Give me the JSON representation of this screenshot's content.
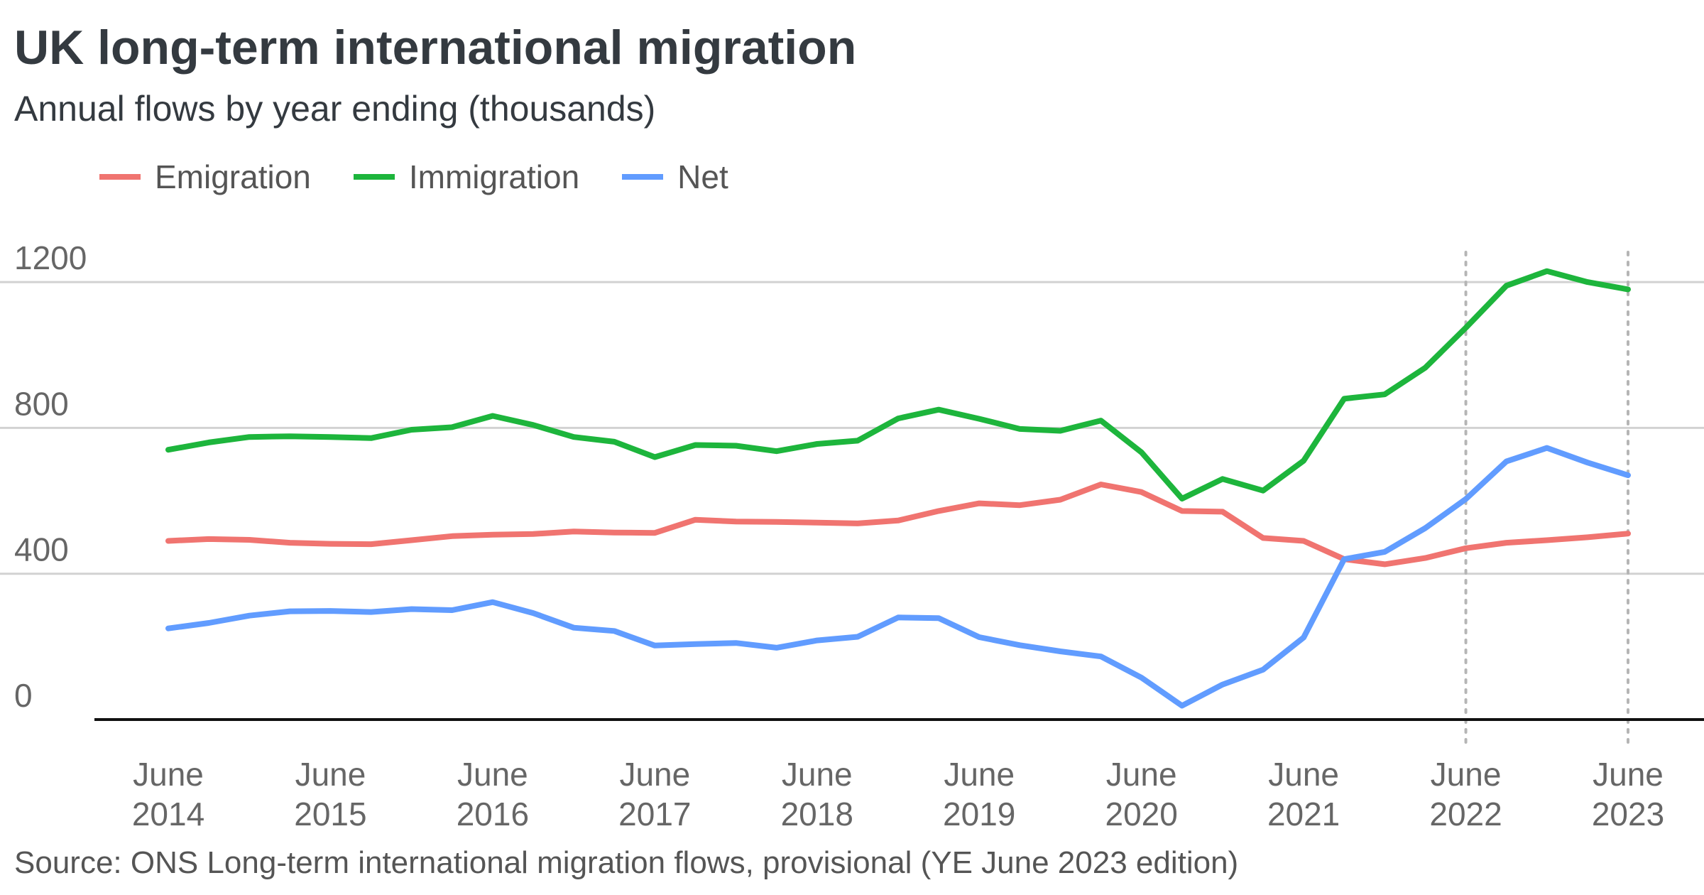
{
  "title": "UK long-term international migration",
  "subtitle": "Annual flows by year ending (thousands)",
  "legend": [
    {
      "label": "Emigration",
      "color": "#f07470"
    },
    {
      "label": "Immigration",
      "color": "#1db53c"
    },
    {
      "label": "Net",
      "color": "#619cff"
    }
  ],
  "source": "Source: ONS Long-term international migration flows, provisional (YE June 2023 edition)",
  "chart_data": {
    "type": "line",
    "x": [
      "Jun 2014",
      "Sep 2014",
      "Dec 2014",
      "Mar 2015",
      "Jun 2015",
      "Sep 2015",
      "Dec 2015",
      "Mar 2016",
      "Jun 2016",
      "Sep 2016",
      "Dec 2016",
      "Mar 2017",
      "Jun 2017",
      "Sep 2017",
      "Dec 2017",
      "Mar 2018",
      "Jun 2018",
      "Sep 2018",
      "Dec 2018",
      "Mar 2019",
      "Jun 2019",
      "Sep 2019",
      "Dec 2019",
      "Mar 2020",
      "Jun 2020",
      "Sep 2020",
      "Dec 2020",
      "Mar 2021",
      "Jun 2021",
      "Sep 2021",
      "Dec 2021",
      "Mar 2022",
      "Jun 2022",
      "Sep 2022",
      "Dec 2022",
      "Mar 2023",
      "Jun 2023"
    ],
    "x_tick_labels": [
      {
        "index": 0,
        "line1": "June",
        "line2": "2014"
      },
      {
        "index": 4,
        "line1": "June",
        "line2": "2015"
      },
      {
        "index": 8,
        "line1": "June",
        "line2": "2016"
      },
      {
        "index": 12,
        "line1": "June",
        "line2": "2017"
      },
      {
        "index": 16,
        "line1": "June",
        "line2": "2018"
      },
      {
        "index": 20,
        "line1": "June",
        "line2": "2019"
      },
      {
        "index": 24,
        "line1": "June",
        "line2": "2020"
      },
      {
        "index": 28,
        "line1": "June",
        "line2": "2021"
      },
      {
        "index": 32,
        "line1": "June",
        "line2": "2022"
      },
      {
        "index": 36,
        "line1": "June",
        "line2": "2023"
      }
    ],
    "series": [
      {
        "name": "Emigration",
        "color": "#f07470",
        "values": [
          490,
          495,
          493,
          485,
          482,
          481,
          492,
          503,
          507,
          509,
          516,
          513,
          512,
          548,
          543,
          542,
          540,
          538,
          546,
          572,
          593,
          588,
          603,
          645,
          624,
          572,
          570,
          498,
          490,
          440,
          426,
          443,
          470,
          485,
          492,
          500,
          510
        ]
      },
      {
        "name": "Immigration",
        "color": "#1db53c",
        "values": [
          740,
          760,
          775,
          777,
          775,
          772,
          795,
          802,
          833,
          808,
          775,
          762,
          720,
          753,
          751,
          736,
          756,
          765,
          826,
          850,
          825,
          797,
          792,
          820,
          733,
          606,
          660,
          628,
          710,
          880,
          892,
          965,
          1075,
          1190,
          1230,
          1200,
          1180
        ]
      },
      {
        "name": "Net",
        "color": "#619cff",
        "values": [
          250,
          265,
          285,
          297,
          298,
          295,
          303,
          300,
          322,
          292,
          252,
          243,
          203,
          207,
          210,
          197,
          217,
          227,
          280,
          278,
          226,
          204,
          187,
          173,
          115,
          38,
          96,
          137,
          225,
          440,
          460,
          525,
          605,
          708,
          745,
          705,
          670
        ]
      }
    ],
    "y_ticks": [
      0,
      400,
      800,
      1200
    ],
    "ylim": [
      0,
      1260
    ],
    "vertical_reference_lines": [
      "Jun 2022",
      "Jun 2023"
    ],
    "grid": true,
    "legend_position": "top-left"
  }
}
